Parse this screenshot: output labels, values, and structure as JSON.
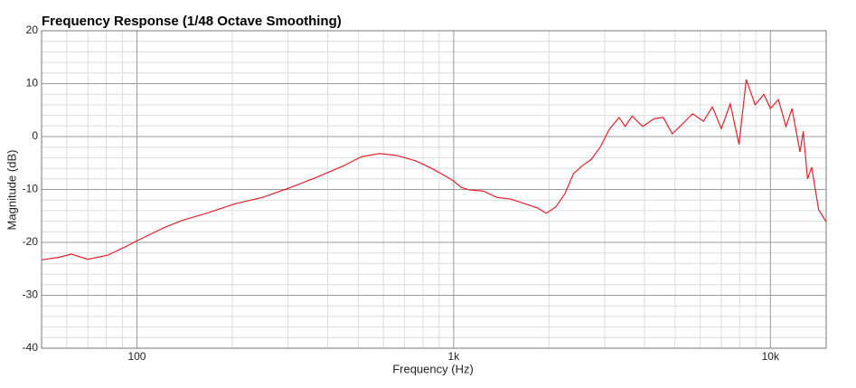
{
  "chart_data": {
    "type": "line",
    "title": "Frequency Response (1/48 Octave Smoothing)",
    "x_label": "Frequency (Hz)",
    "y_label": "Magnitude (dB)",
    "x_scale": "log",
    "grid": true,
    "xlim": [
      50,
      15000
    ],
    "ylim": [
      -40,
      20
    ],
    "xticks": [
      100,
      {
        "value": 1000,
        "label": "1k"
      },
      {
        "value": 10000,
        "label": "10k"
      }
    ],
    "yticks": [
      -40,
      -30,
      -20,
      -10,
      0,
      10,
      20
    ],
    "minor_xticks": [
      60,
      70,
      80,
      90,
      200,
      300,
      400,
      500,
      600,
      700,
      800,
      900,
      2000,
      3000,
      4000,
      5000,
      6000,
      7000,
      8000,
      9000
    ],
    "minor_yticks": [
      -38,
      -36,
      -34,
      -32,
      -28,
      -26,
      -24,
      -22,
      -18,
      -16,
      -14,
      -12,
      -8,
      -6,
      -4,
      -2,
      2,
      4,
      6,
      8,
      12,
      14,
      16,
      18
    ],
    "x": [
      50,
      57,
      62,
      70,
      81,
      93,
      100,
      121,
      138,
      168,
      204,
      249,
      303,
      369,
      450,
      512,
      585,
      665,
      760,
      838,
      894,
      956,
      1000,
      1055,
      1125,
      1240,
      1370,
      1510,
      1660,
      1840,
      1960,
      2100,
      2240,
      2390,
      2550,
      2720,
      2910,
      3100,
      3330,
      3480,
      3660,
      3950,
      4300,
      4590,
      4900,
      5220,
      5680,
      6150,
      6560,
      7000,
      7470,
      7960,
      8390,
      8950,
      9540,
      10000,
      10600,
      11200,
      11700,
      12400,
      12700,
      13100,
      13500,
      14200,
      15000
    ],
    "series": [
      {
        "color": "#e3202b",
        "values": [
          -23.3,
          -22.8,
          -22.2,
          -23.2,
          -22.4,
          -20.7,
          -19.7,
          -17.3,
          -15.9,
          -14.4,
          -12.7,
          -11.5,
          -9.7,
          -7.7,
          -5.5,
          -3.8,
          -3.2,
          -3.6,
          -4.6,
          -5.8,
          -6.7,
          -7.7,
          -8.4,
          -9.6,
          -10.1,
          -10.3,
          -11.5,
          -11.8,
          -12.6,
          -13.5,
          -14.5,
          -13.3,
          -10.9,
          -7.0,
          -5.5,
          -4.3,
          -1.9,
          1.4,
          3.6,
          1.9,
          3.9,
          1.9,
          3.4,
          3.6,
          0.5,
          2.1,
          4.3,
          2.9,
          5.6,
          1.5,
          6.2,
          -1.5,
          10.8,
          6.0,
          8.0,
          5.3,
          7.0,
          1.9,
          5.3,
          -2.9,
          1.0,
          -8.0,
          -5.8,
          -13.8,
          -16.1
        ]
      }
    ]
  }
}
